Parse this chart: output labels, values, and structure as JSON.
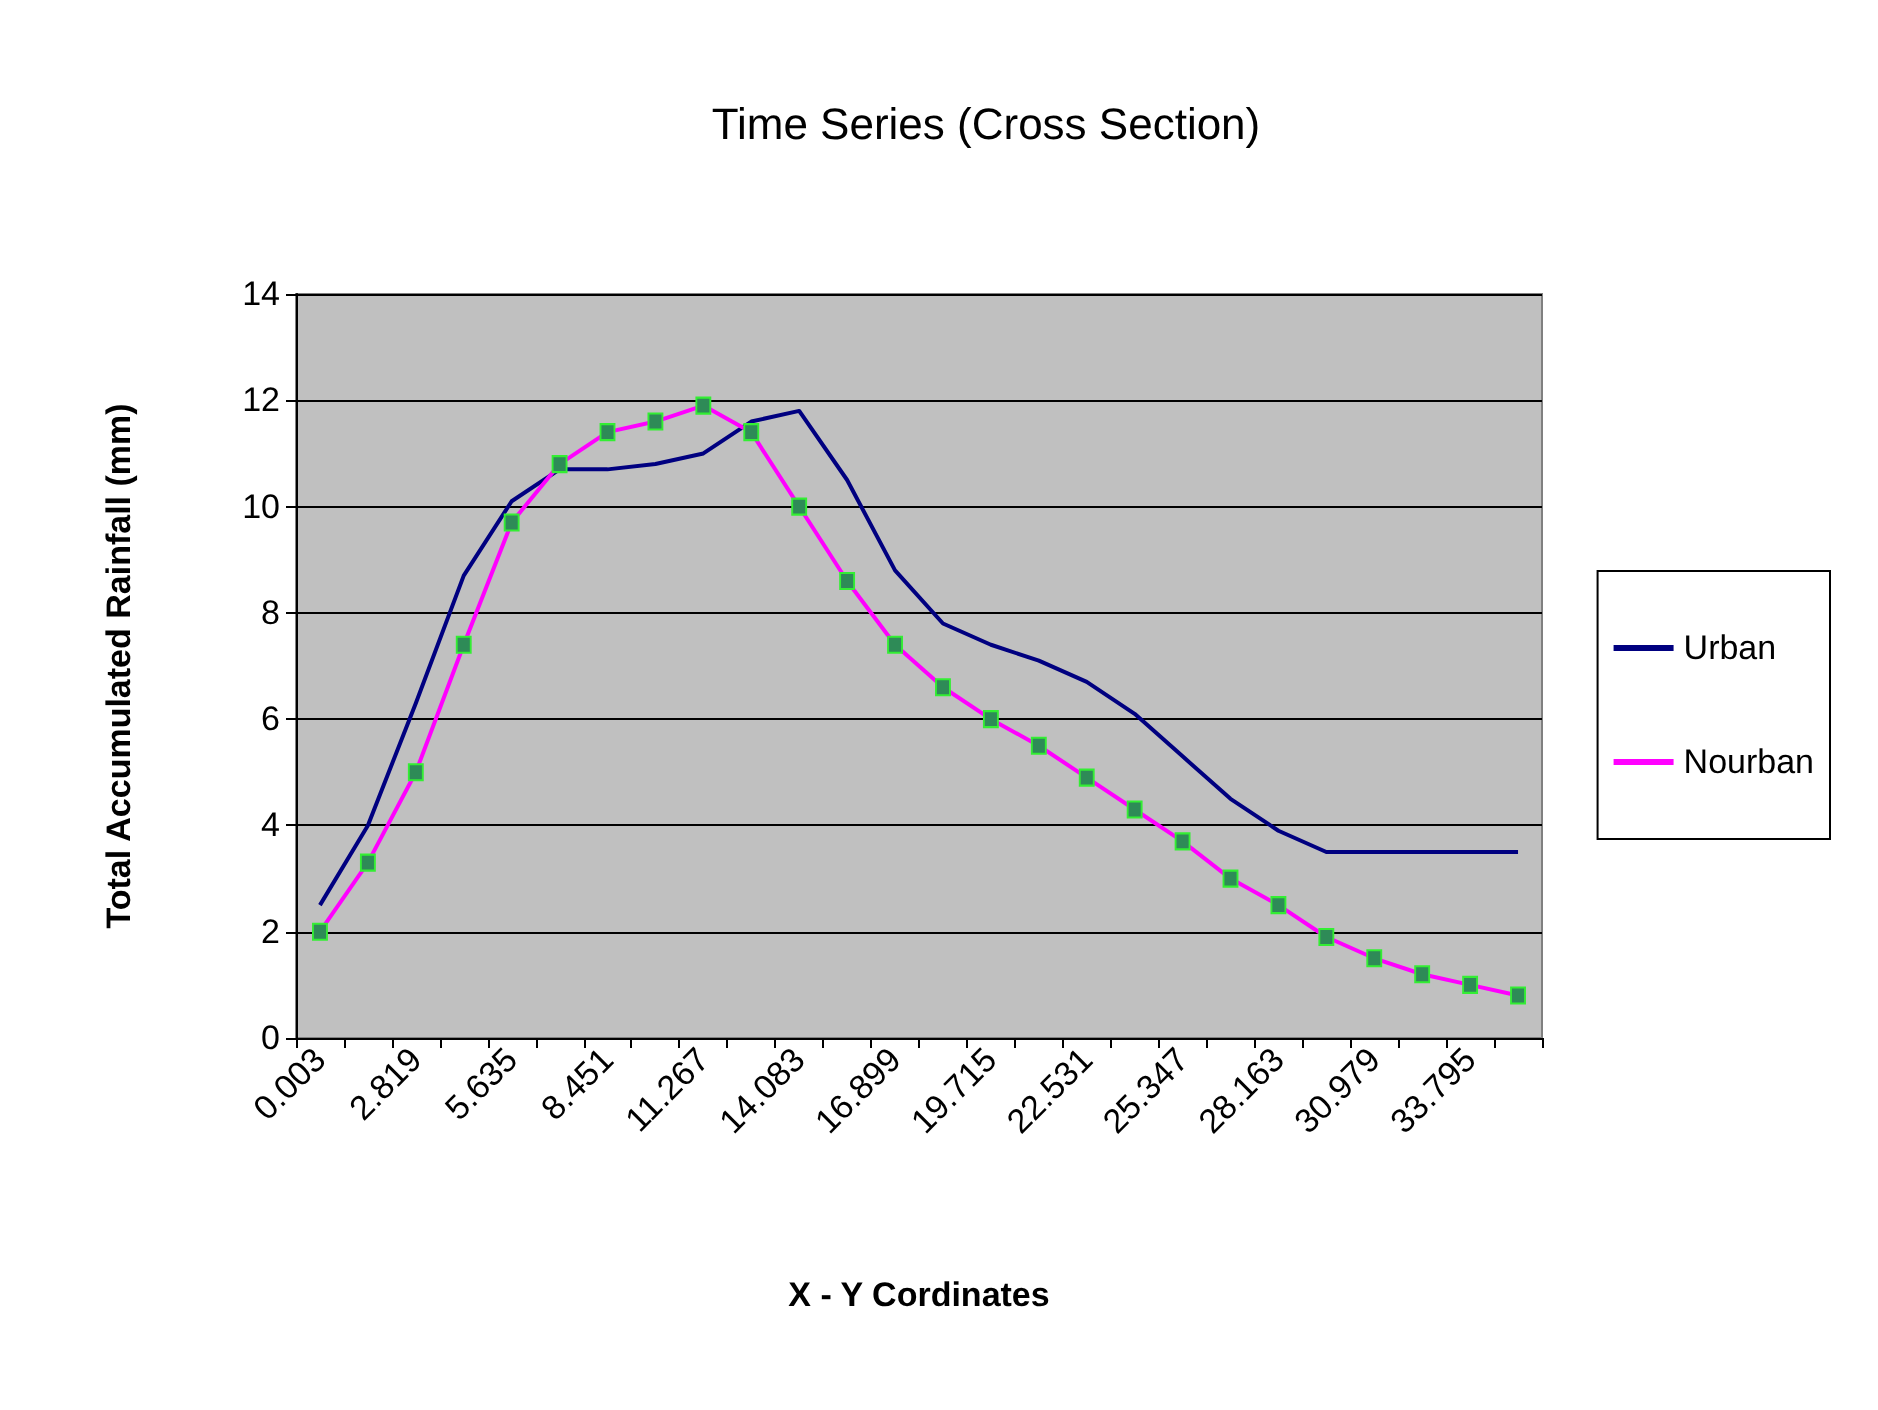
{
  "chart_data": {
    "type": "line",
    "title": "Time Series (Cross Section)",
    "xlabel": "X - Y Cordinates",
    "ylabel": "Total Accumulated Rainfall (mm)",
    "categories": [
      "0.003",
      null,
      "2.819",
      null,
      "5.635",
      null,
      "8.451",
      null,
      "11.267",
      null,
      "14.083",
      null,
      "16.899",
      null,
      "19.715",
      null,
      "22.531",
      null,
      "25.347",
      null,
      "28.163",
      null,
      "30.979",
      null,
      "33.795",
      null
    ],
    "series": [
      {
        "name": "Urban",
        "color": "#000080",
        "marker": "none",
        "values": [
          2.5,
          4.0,
          6.3,
          8.7,
          10.1,
          10.7,
          10.7,
          10.8,
          11.0,
          11.6,
          11.8,
          10.5,
          8.8,
          7.8,
          7.4,
          7.1,
          6.7,
          6.1,
          5.3,
          4.5,
          3.9,
          3.5,
          3.5,
          3.5,
          3.5,
          3.5
        ]
      },
      {
        "name": "Nourban",
        "color": "#ff00ff",
        "marker": "square",
        "values": [
          2.0,
          3.3,
          5.0,
          7.4,
          9.7,
          10.8,
          11.4,
          11.6,
          11.9,
          11.4,
          10.0,
          8.6,
          7.4,
          6.6,
          6.0,
          5.5,
          4.9,
          4.3,
          3.7,
          3.0,
          2.5,
          1.9,
          1.5,
          1.2,
          1.0,
          0.8
        ]
      }
    ],
    "ylim": [
      0,
      14
    ],
    "yticks": [
      0,
      2,
      4,
      6,
      8,
      10,
      12,
      14
    ],
    "grid": "y",
    "legend": "right"
  }
}
